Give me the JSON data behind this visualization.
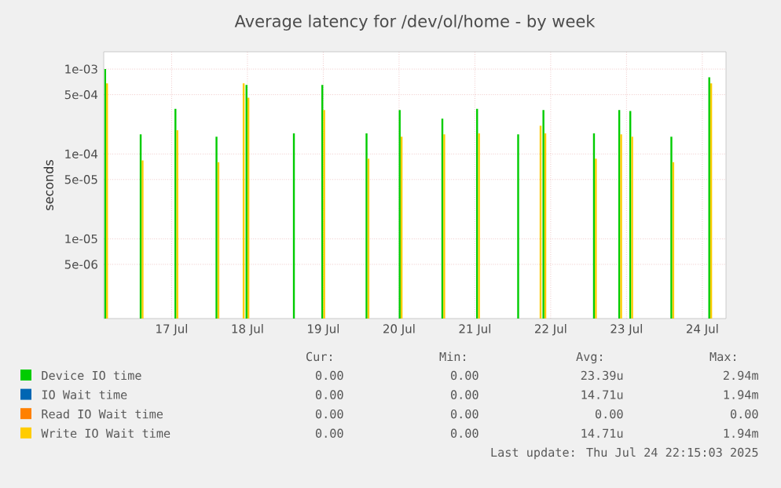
{
  "chart_data": {
    "type": "bar",
    "title": "Average latency for /dev/ol/home - by week",
    "ylabel": "seconds",
    "x": [
      "2025-07-16T15:15",
      "2025-07-17T02:30",
      "2025-07-17T13:30",
      "2025-07-18T02:30",
      "2025-07-18T10:30",
      "2025-07-18T12:00",
      "2025-07-19T03:00",
      "2025-07-19T12:00",
      "2025-07-20T02:00",
      "2025-07-20T12:30",
      "2025-07-21T02:00",
      "2025-07-21T13:00",
      "2025-07-22T02:00",
      "2025-07-22T08:30",
      "2025-07-22T10:00",
      "2025-07-23T02:00",
      "2025-07-23T10:00",
      "2025-07-23T13:30",
      "2025-07-24T02:30",
      "2025-07-24T14:30"
    ],
    "series": [
      {
        "name": "Device IO time",
        "color": "#00cc00",
        "values": [
          0.001,
          0.00017,
          0.00034,
          0.00016,
          null,
          0.00065,
          0.000175,
          0.00065,
          0.000175,
          0.00033,
          0.00026,
          0.00034,
          0.00017,
          null,
          0.00033,
          0.000175,
          0.00033,
          0.00032,
          0.00016,
          0.0008
        ]
      },
      {
        "name": "IO Wait time",
        "color": "#0066b3",
        "values": [
          null,
          null,
          null,
          null,
          null,
          null,
          null,
          null,
          null,
          null,
          null,
          null,
          null,
          null,
          null,
          null,
          null,
          null,
          null,
          null
        ]
      },
      {
        "name": "Read IO Wait time",
        "color": "#ff8000",
        "values": [
          null,
          null,
          null,
          null,
          null,
          null,
          null,
          null,
          null,
          null,
          null,
          null,
          null,
          null,
          null,
          null,
          null,
          null,
          null,
          null
        ]
      },
      {
        "name": "Write IO Wait time",
        "color": "#ffcc00",
        "values": [
          0.00068,
          8.4e-05,
          0.00019,
          8e-05,
          0.00068,
          0.00046,
          null,
          0.00033,
          8.8e-05,
          0.00016,
          0.00017,
          0.000175,
          null,
          0.000215,
          0.000175,
          8.8e-05,
          0.00017,
          0.00016,
          8e-05,
          0.00068
        ]
      }
    ],
    "xlim": [
      "2025-07-16T14:30",
      "2025-07-24T19:30"
    ],
    "xticks": [
      {
        "value": "2025-07-17T12:00",
        "label": "17 Jul"
      },
      {
        "value": "2025-07-18T12:00",
        "label": "18 Jul"
      },
      {
        "value": "2025-07-19T12:00",
        "label": "19 Jul"
      },
      {
        "value": "2025-07-20T12:00",
        "label": "20 Jul"
      },
      {
        "value": "2025-07-21T12:00",
        "label": "21 Jul"
      },
      {
        "value": "2025-07-22T12:00",
        "label": "22 Jul"
      },
      {
        "value": "2025-07-23T12:00",
        "label": "23 Jul"
      },
      {
        "value": "2025-07-24T12:00",
        "label": "24 Jul"
      }
    ],
    "ylim": [
      1.15e-06,
      0.0016
    ],
    "yticks": [
      {
        "value": 5e-06,
        "label": "5e-06"
      },
      {
        "value": 1e-05,
        "label": "1e-05"
      },
      {
        "value": 5e-05,
        "label": "5e-05"
      },
      {
        "value": 0.0001,
        "label": "1e-04"
      },
      {
        "value": 0.0005,
        "label": "5e-04"
      },
      {
        "value": 0.001,
        "label": "1e-03"
      }
    ],
    "log": "y",
    "grid": true,
    "legend": "bottom",
    "annotations": [
      "Cur:",
      "Min:",
      "Avg:",
      "Max:",
      "0.00",
      "0.00",
      "23.39u",
      "2.94m",
      "0.00",
      "0.00",
      "14.71u",
      "1.94m",
      "0.00",
      "0.00",
      "0.00",
      "0.00",
      "0.00",
      "0.00",
      "14.71u",
      "1.94m",
      "Last update: Thu Jul 24 22:15:03 2025"
    ]
  }
}
